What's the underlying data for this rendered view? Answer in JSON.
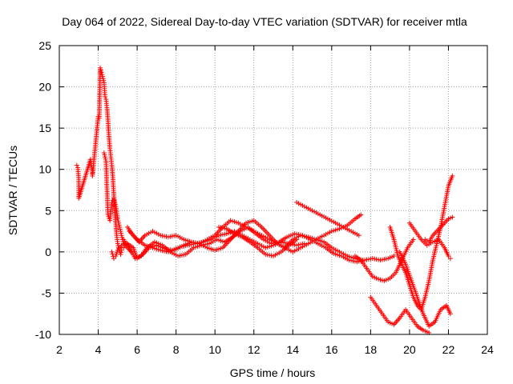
{
  "chart_data": {
    "type": "scatter",
    "title": "Day 064 of 2022, Sidereal Day-to-day VTEC variation (SDTVAR) for receiver mtla",
    "xlabel": "GPS time / hours",
    "ylabel": "SDTVAR / TECUs",
    "xlim": [
      2,
      24
    ],
    "ylim": [
      -10,
      25
    ],
    "xticks": [
      "2",
      "4",
      "6",
      "8",
      "10",
      "12",
      "14",
      "16",
      "18",
      "20",
      "22",
      "24"
    ],
    "yticks": [
      "-10",
      "-5",
      "0",
      "5",
      "10",
      "15",
      "20",
      "25"
    ],
    "grid": true,
    "marker": "+",
    "color": "#ff0000",
    "series": [
      {
        "name": "s1",
        "x": [
          2.9,
          2.95,
          3.0,
          3.0,
          3.6,
          3.65,
          3.7,
          3.7,
          4.0,
          4.05,
          4.1,
          4.2,
          4.25,
          4.3,
          4.35,
          4.4,
          4.45,
          4.5,
          4.55,
          4.6,
          4.65,
          4.7,
          4.75,
          4.8,
          4.85,
          4.9,
          4.95,
          5.0,
          5.05,
          5.1,
          5.15,
          5.2,
          5.3
        ],
        "y": [
          10.5,
          10.2,
          8.8,
          6.5,
          11.2,
          10.5,
          9.8,
          9.2,
          16.4,
          16.2,
          22.3,
          21.5,
          21.0,
          20.5,
          18.8,
          18.5,
          17.5,
          16.0,
          14.0,
          12.5,
          11.5,
          10.5,
          9.0,
          7.0,
          5.0,
          3.5,
          2.0,
          1.0,
          0.5,
          0.0,
          -0.3,
          0.2,
          0.5
        ]
      },
      {
        "name": "s2",
        "x": [
          4.3,
          4.35,
          4.4,
          4.5,
          4.6,
          4.7,
          4.8,
          4.9,
          5.0,
          5.1,
          5.2,
          5.3,
          5.5,
          5.7
        ],
        "y": [
          12.0,
          11.5,
          11.0,
          4.5,
          3.8,
          6.0,
          6.5,
          5.5,
          4.0,
          3.0,
          2.0,
          1.0,
          0.5,
          0.0
        ]
      },
      {
        "name": "s3",
        "x": [
          4.7,
          4.8,
          4.9,
          5.0,
          5.2,
          5.5,
          5.8,
          6.0,
          6.3,
          6.6,
          7.0,
          7.4,
          7.8,
          8.2,
          8.6,
          9.0,
          9.4,
          9.8,
          10.2,
          10.6,
          11.0,
          11.4,
          11.8,
          12.2,
          12.6,
          13.0,
          13.4,
          13.8,
          14.2,
          14.6
        ],
        "y": [
          0.0,
          -0.8,
          -0.5,
          0.2,
          0.8,
          1.0,
          0.5,
          -0.8,
          -0.3,
          0.5,
          0.8,
          0.4,
          0.2,
          0.6,
          0.8,
          1.0,
          1.2,
          1.5,
          2.0,
          2.2,
          2.5,
          2.0,
          1.5,
          1.0,
          0.5,
          0.8,
          1.2,
          1.0,
          0.8,
          1.0
        ]
      },
      {
        "name": "s4",
        "x": [
          5.5,
          5.8,
          6.1,
          6.4,
          6.8,
          7.2,
          7.6,
          8.0,
          8.4,
          8.8,
          9.2,
          9.6,
          10.0,
          10.4,
          10.8,
          11.2,
          11.6,
          12.0,
          12.4,
          12.8,
          13.2,
          13.6,
          14.0,
          14.4,
          14.8,
          15.2,
          15.6,
          16.0,
          16.4,
          16.8,
          17.2,
          17.5
        ],
        "y": [
          3.0,
          2.0,
          1.2,
          2.0,
          2.5,
          2.0,
          1.8,
          2.0,
          1.5,
          1.2,
          1.0,
          1.5,
          2.0,
          3.0,
          3.8,
          3.5,
          3.0,
          2.5,
          2.0,
          1.5,
          1.0,
          0.5,
          0.0,
          0.5,
          1.0,
          1.5,
          2.0,
          2.5,
          2.8,
          3.2,
          4.0,
          4.5
        ]
      },
      {
        "name": "s5",
        "x": [
          5.3,
          5.6,
          5.9,
          6.2,
          6.5,
          6.9,
          7.3,
          7.7,
          8.1,
          8.5,
          8.9,
          9.3,
          9.7,
          10.1,
          10.5,
          10.9,
          11.3,
          11.7,
          12.1,
          12.5,
          12.9,
          13.3,
          13.7,
          14.1,
          14.5,
          14.9,
          15.3,
          15.7,
          16.1,
          16.5,
          16.9,
          17.3,
          17.7,
          18.1,
          18.5,
          18.9,
          19.2
        ],
        "y": [
          1.5,
          0.5,
          -0.8,
          -0.5,
          0.5,
          1.2,
          0.8,
          0.0,
          -0.5,
          -0.3,
          0.5,
          0.8,
          1.0,
          1.5,
          1.2,
          1.8,
          2.5,
          3.0,
          2.2,
          1.5,
          1.0,
          1.2,
          1.8,
          2.2,
          2.0,
          1.5,
          1.0,
          0.5,
          -0.2,
          -0.5,
          -1.0,
          -1.2,
          -1.0,
          -0.8,
          -1.0,
          -0.8,
          -0.5
        ]
      },
      {
        "name": "s6",
        "x": [
          5.6,
          6.0,
          6.4,
          6.8,
          7.2,
          7.6,
          8.0,
          8.4,
          8.8,
          9.2,
          9.6,
          10.0,
          10.4,
          10.8,
          11.2,
          11.6,
          12.0,
          12.4,
          12.8,
          13.2,
          13.6,
          14.0,
          14.4,
          14.8,
          15.2,
          15.6,
          16.0,
          16.4,
          16.8,
          17.2,
          17.6
        ],
        "y": [
          2.5,
          1.5,
          0.8,
          0.5,
          0.2,
          0.0,
          0.3,
          0.8,
          1.2,
          1.0,
          0.5,
          0.2,
          0.5,
          1.5,
          2.5,
          3.5,
          3.8,
          3.0,
          2.0,
          1.0,
          0.5,
          1.5,
          2.0,
          1.8,
          1.5,
          1.2,
          0.5,
          0.0,
          -0.5,
          -0.8,
          -1.0
        ]
      },
      {
        "name": "s7",
        "x": [
          10.2,
          10.6,
          11.0,
          11.4,
          11.8,
          12.2,
          12.6,
          13.0,
          13.4,
          13.8,
          14.2
        ],
        "y": [
          3.0,
          2.8,
          2.2,
          1.8,
          1.2,
          0.5,
          -0.3,
          -0.5,
          0.0,
          0.8,
          1.5
        ]
      },
      {
        "name": "s8",
        "x": [
          14.2,
          14.6,
          15.0,
          15.4,
          15.8,
          16.2,
          16.6,
          17.0,
          17.4
        ],
        "y": [
          6.0,
          5.5,
          5.0,
          4.5,
          4.0,
          3.5,
          3.0,
          2.5,
          2.0
        ]
      },
      {
        "name": "s9",
        "x": [
          17.2,
          17.5,
          17.8,
          18.1,
          18.4,
          18.7,
          19.0,
          19.3,
          19.6,
          19.9,
          20.2
        ],
        "y": [
          -0.5,
          -1.0,
          -2.0,
          -3.0,
          -3.3,
          -3.5,
          -3.2,
          -2.5,
          -1.0,
          0.5,
          1.5
        ]
      },
      {
        "name": "s10",
        "x": [
          18.0,
          18.3,
          18.6,
          18.9,
          19.2,
          19.5,
          19.8,
          20.1,
          20.4,
          20.7,
          21.0
        ],
        "y": [
          -5.5,
          -6.5,
          -7.5,
          -8.5,
          -8.8,
          -8.0,
          -7.0,
          -8.0,
          -9.0,
          -9.5,
          -9.8
        ]
      },
      {
        "name": "s11",
        "x": [
          19.5,
          19.8,
          20.1,
          20.4,
          20.7,
          21.0,
          21.3,
          21.6,
          21.9,
          22.1
        ],
        "y": [
          0.0,
          -1.5,
          -3.5,
          -5.5,
          -7.5,
          -9.0,
          -8.5,
          -7.0,
          -6.5,
          -7.5
        ]
      },
      {
        "name": "s12",
        "x": [
          19.0,
          19.2,
          19.4,
          19.6,
          19.8,
          20.0,
          20.2,
          20.4,
          20.6,
          20.8,
          21.0,
          21.2,
          21.4,
          21.6,
          21.8,
          22.0,
          22.2
        ],
        "y": [
          3.0,
          1.5,
          -0.5,
          -1.5,
          -2.5,
          -4.0,
          -5.5,
          -6.5,
          -7.0,
          -5.5,
          -3.5,
          -1.0,
          1.0,
          3.0,
          5.5,
          8.0,
          9.2
        ]
      },
      {
        "name": "s13",
        "x": [
          20.8,
          21.0,
          21.2,
          21.4,
          21.6,
          21.8,
          22.0,
          22.2
        ],
        "y": [
          1.5,
          1.2,
          2.0,
          2.5,
          3.0,
          3.5,
          4.0,
          4.2
        ]
      },
      {
        "name": "s14",
        "x": [
          20.0,
          20.3,
          20.6,
          20.9,
          21.2,
          21.5,
          21.8,
          22.0,
          22.1
        ],
        "y": [
          3.5,
          2.5,
          1.5,
          0.8,
          1.2,
          1.5,
          0.5,
          -0.5,
          -0.8
        ]
      }
    ]
  }
}
